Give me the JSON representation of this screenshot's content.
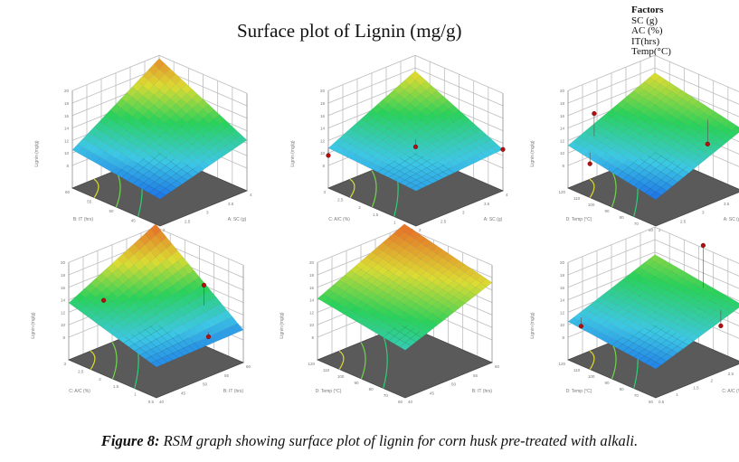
{
  "title": "Surface plot of Lignin (mg/g)",
  "factors": {
    "heading": "Factors",
    "items": [
      "SC (g)",
      "AC (%)",
      "IT(hrs)",
      "Temp(°C)"
    ]
  },
  "caption": {
    "label": "Figure 8:",
    "text": " RSM graph showing surface plot of lignin for corn husk pre-treated with alkali."
  },
  "colors": {
    "floor": "#5a5a5a",
    "grid": "#bdbdbd",
    "point": "#b01010"
  },
  "chart_data": [
    {
      "type": "surface",
      "zlabel": "Lignin (mg/g)",
      "zlim": [
        8,
        20
      ],
      "zticks": [
        "8",
        "10",
        "12",
        "14",
        "16",
        "18",
        "20"
      ],
      "left_axis": {
        "label": "B: IT (hrs)",
        "ticks": [
          "40",
          "45",
          "50",
          "55",
          "60"
        ]
      },
      "right_axis": {
        "label": "A: SC (g)",
        "ticks": [
          "2",
          "2.5",
          "3",
          "3.5",
          "4"
        ]
      },
      "corners": {
        "front": 8.7,
        "left": 10.5,
        "right": 12.5,
        "back": 19.5
      },
      "points": []
    },
    {
      "type": "surface",
      "zlabel": "Lignin (mg/g)",
      "zlim": [
        8,
        20
      ],
      "zticks": [
        "8",
        "10",
        "12",
        "14",
        "16",
        "18",
        "20"
      ],
      "left_axis": {
        "label": "C: A/C (%)",
        "ticks": [
          "0.5",
          "1",
          "1.5",
          "2",
          "2.5",
          "3"
        ]
      },
      "right_axis": {
        "label": "A: SC (g)",
        "ticks": [
          "2",
          "2.5",
          "3",
          "3.5",
          "4"
        ]
      },
      "corners": {
        "front": 10.0,
        "left": 10.8,
        "right": 11.0,
        "back": 17.5
      },
      "points": [
        {
          "u": 0.5,
          "v": 0.5,
          "z": 11.2
        },
        {
          "u": 0,
          "v": 1,
          "z": 11.0
        },
        {
          "u": 1,
          "v": 0,
          "z": 9.6
        }
      ]
    },
    {
      "type": "surface",
      "zlabel": "Lignin (mg/g)",
      "zlim": [
        8,
        20
      ],
      "zticks": [
        "8",
        "10",
        "12",
        "14",
        "16",
        "18",
        "20"
      ],
      "left_axis": {
        "label": "D: Temp (°C)",
        "ticks": [
          "60",
          "70",
          "80",
          "90",
          "100",
          "110",
          "120"
        ]
      },
      "right_axis": {
        "label": "A: SC (g)",
        "ticks": [
          "2",
          "2.5",
          "3",
          "3.5",
          "4"
        ]
      },
      "corners": {
        "front": 8.6,
        "left": 11.2,
        "right": 14.2,
        "back": 17.2
      },
      "points": [
        {
          "u": 0.9,
          "v": 0.2,
          "z": 15.8
        },
        {
          "u": 0.3,
          "v": 0.9,
          "z": 10.6
        },
        {
          "u": 0.8,
          "v": 0.05,
          "z": 9.2
        }
      ]
    },
    {
      "type": "surface",
      "zlabel": "Lignin (mg/g)",
      "zlim": [
        8,
        20
      ],
      "zticks": [
        "8",
        "10",
        "12",
        "14",
        "16",
        "18",
        "20"
      ],
      "left_axis": {
        "label": "C: A/C (%)",
        "ticks": [
          "0.5",
          "1",
          "1.5",
          "2",
          "2.5",
          "3"
        ]
      },
      "right_axis": {
        "label": "B: IT (hrs)",
        "ticks": [
          "40",
          "45",
          "50",
          "55",
          "60"
        ]
      },
      "corners": {
        "front": 9.3,
        "left": 13.5,
        "right": 9.6,
        "back": 20.5
      },
      "points": [
        {
          "u": 0.8,
          "v": 0.2,
          "z": 14.0
        },
        {
          "u": 0.3,
          "v": 0.85,
          "z": 15.8
        },
        {
          "u": 0.1,
          "v": 0.7,
          "z": 9.6
        }
      ]
    },
    {
      "type": "surface",
      "zlabel": "Lignin (mg/g)",
      "zlim": [
        8,
        20
      ],
      "zticks": [
        "8",
        "10",
        "12",
        "14",
        "16",
        "18",
        "20"
      ],
      "left_axis": {
        "label": "D: Temp (°C)",
        "ticks": [
          "60",
          "70",
          "80",
          "90",
          "100",
          "110",
          "120"
        ]
      },
      "right_axis": {
        "label": "B: IT (hrs)",
        "ticks": [
          "40",
          "45",
          "50",
          "55",
          "60"
        ]
      },
      "corners": {
        "front": 12.0,
        "left": 14.2,
        "right": 17.2,
        "back": 20.5
      },
      "points": []
    },
    {
      "type": "surface",
      "zlabel": "Lignin (mg/g)",
      "zlim": [
        8,
        20
      ],
      "zticks": [
        "8",
        "10",
        "12",
        "14",
        "16",
        "18",
        "20"
      ],
      "left_axis": {
        "label": "D: Temp (°C)",
        "ticks": [
          "60",
          "70",
          "80",
          "90",
          "100",
          "110",
          "120"
        ]
      },
      "right_axis": {
        "label": "C: A/C (%)",
        "ticks": [
          "0.5",
          "1",
          "1.5",
          "2",
          "2.5",
          "3"
        ]
      },
      "corners": {
        "front": 9.0,
        "left": 10.5,
        "right": 13.6,
        "back": 15.6
      },
      "points": [
        {
          "u": 0.95,
          "v": 0.1,
          "z": 9.5
        },
        {
          "u": 0.1,
          "v": 0.85,
          "z": 10.5
        },
        {
          "u": 0.4,
          "v": 0.95,
          "z": 21.0
        }
      ]
    }
  ]
}
